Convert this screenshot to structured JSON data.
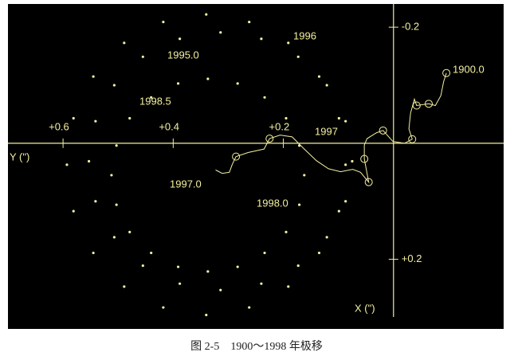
{
  "chart_data": {
    "type": "scatter",
    "title": "图 2-5　1900～1998 年极移",
    "xlabel": "X (\")",
    "ylabel": "Y (\")",
    "xlim": [
      -0.24,
      0.32
    ],
    "ylim": [
      0.7,
      -0.2
    ],
    "xticks": [
      {
        "value": -0.2,
        "label": "-0.2"
      },
      {
        "value": 0.2,
        "label": "+0.2"
      }
    ],
    "yticks": [
      {
        "value": 0.6,
        "label": "+0.6"
      },
      {
        "value": 0.4,
        "label": "+0.4"
      },
      {
        "value": 0.2,
        "label": "+0.2"
      }
    ],
    "annotations": [
      "1996",
      "1995.0",
      "1998.5",
      "1997",
      "1997.0",
      "1998.0",
      "1900.0"
    ],
    "series": [
      {
        "color": "#f4f0a0",
        "style": "dots",
        "x": [
          0.037,
          0.117,
          0.189,
          0.247,
          0.283,
          0.296,
          0.283,
          0.247,
          0.189,
          0.117,
          0.037,
          -0.043,
          -0.115,
          -0.173,
          -0.209,
          -0.222,
          -0.209,
          -0.173,
          -0.115,
          -0.043
        ],
        "values": [
          0.593,
          0.581,
          0.545,
          0.489,
          0.418,
          0.34,
          0.262,
          0.191,
          0.135,
          0.099,
          0.087,
          0.099,
          0.135,
          0.191,
          0.262,
          0.34,
          0.418,
          0.489,
          0.545,
          0.581
        ]
      },
      {
        "color": "#f4f0a0",
        "style": "dots",
        "x": [
          0.031,
          0.1,
          0.162,
          0.211,
          0.242,
          0.253,
          0.242,
          0.211,
          0.162,
          0.1,
          0.031,
          -0.038,
          -0.1,
          -0.149,
          -0.18,
          -0.191,
          -0.18,
          -0.149,
          -0.1,
          -0.038
        ],
        "values": [
          0.553,
          0.541,
          0.507,
          0.455,
          0.388,
          0.314,
          0.24,
          0.173,
          0.121,
          0.087,
          0.075,
          0.087,
          0.121,
          0.173,
          0.24,
          0.314,
          0.388,
          0.455,
          0.507,
          0.541
        ]
      },
      {
        "color": "#f4f0a0",
        "style": "dots",
        "x": [
          0.055,
          0.106,
          0.153,
          0.189,
          0.213,
          0.221,
          0.213,
          0.189,
          0.153,
          0.106,
          0.055,
          0.004,
          -0.043,
          -0.079,
          -0.103,
          -0.111,
          -0.103,
          -0.079,
          -0.043,
          0.004
        ],
        "values": [
          0.512,
          0.503,
          0.479,
          0.44,
          0.391,
          0.337,
          0.283,
          0.234,
          0.195,
          0.171,
          0.162,
          0.171,
          0.195,
          0.234,
          0.283,
          0.337,
          0.391,
          0.44,
          0.479,
          0.503
        ]
      },
      {
        "color": "#f4f0a0",
        "style": "line",
        "x": [
          -0.121,
          -0.106,
          -0.082,
          -0.065,
          -0.068,
          -0.065,
          -0.076,
          -0.052,
          -0.025,
          -0.007,
          0,
          -0.003,
          -0.022,
          -0.018,
          -0.008,
          0.003,
          0.027,
          0.067,
          0.05,
          0.045,
          0.049,
          0.044,
          0.03,
          0.01,
          -0.011,
          -0.014,
          -0.008,
          0.01,
          0.016,
          0.023,
          0.037,
          0.05,
          0.052,
          0.046
        ],
        "values": [
          -0.096,
          -0.091,
          -0.086,
          -0.076,
          -0.064,
          -0.042,
          -0.038,
          -0.031,
          -0.028,
          -0.034,
          -0.02,
          0.001,
          0.019,
          0.031,
          0.048,
          0.053,
          0.053,
          0.045,
          0.06,
          0.074,
          0.096,
          0.118,
          0.14,
          0.162,
          0.184,
          0.206,
          0.225,
          0.235,
          0.264,
          0.286,
          0.293,
          0.298,
          0.311,
          0.323
        ]
      },
      {
        "color": "#f4f0a0",
        "style": "circles",
        "x": [
          -0.121,
          -0.065,
          -0.068,
          -0.007,
          -0.022,
          0.027,
          0.067,
          -0.008,
          0.023
        ],
        "values": [
          -0.096,
          -0.042,
          -0.064,
          -0.034,
          0.019,
          0.053,
          0.045,
          0.225,
          0.286
        ]
      }
    ]
  }
}
